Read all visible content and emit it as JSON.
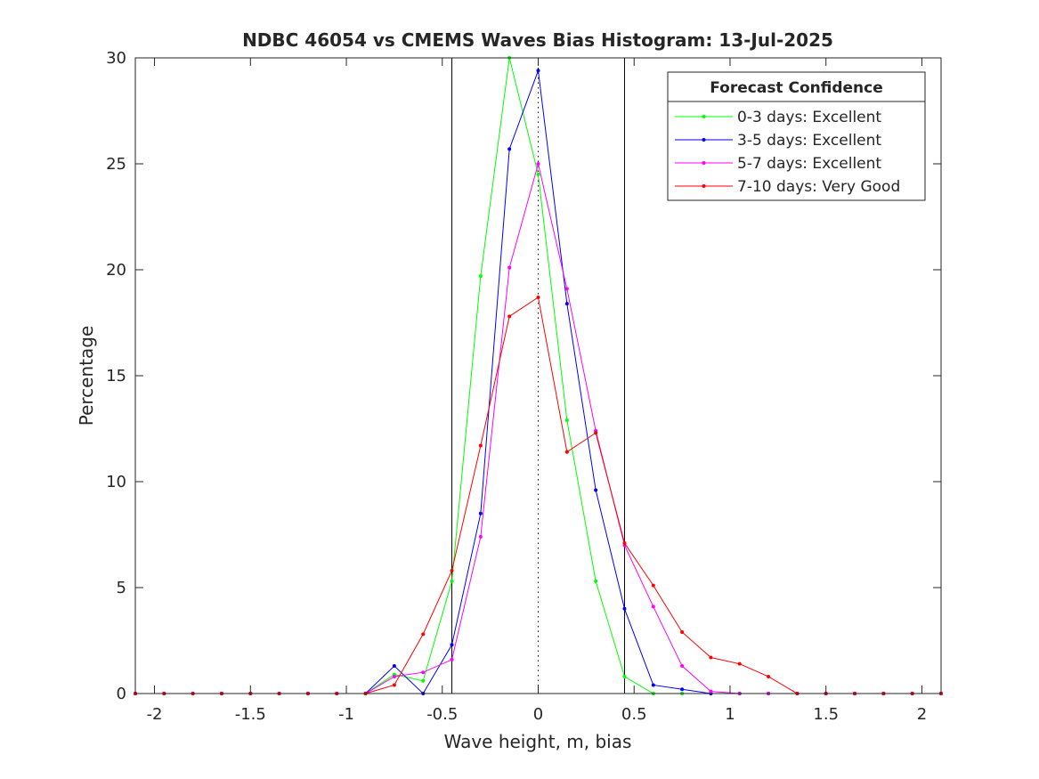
{
  "chart_data": {
    "type": "line",
    "title": "NDBC 46054 vs CMEMS Waves Bias Histogram: 13-Jul-2025",
    "xlabel": "Wave height, m, bias",
    "ylabel": "Percentage",
    "xlim": [
      -2.1,
      2.1
    ],
    "ylim": [
      0,
      30
    ],
    "xticks": [
      -2,
      -1.5,
      -1,
      -0.5,
      0,
      0.5,
      1,
      1.5,
      2
    ],
    "xtick_labels": [
      "-2",
      "-1.5",
      "-1",
      "-0.5",
      "0",
      "0.5",
      "1",
      "1.5",
      "2"
    ],
    "yticks": [
      0,
      5,
      10,
      15,
      20,
      25,
      30
    ],
    "ytick_labels": [
      "0",
      "5",
      "10",
      "15",
      "20",
      "25",
      "30"
    ],
    "grid": false,
    "reference_lines": {
      "solid_x": [
        -0.45,
        0.45
      ],
      "dotted_x": [
        0
      ]
    },
    "legend": {
      "title": "Forecast Confidence",
      "placement": "top-right"
    },
    "x": [
      -2.1,
      -1.95,
      -1.8,
      -1.65,
      -1.5,
      -1.35,
      -1.2,
      -1.05,
      -0.9,
      -0.75,
      -0.6,
      -0.45,
      -0.3,
      -0.15,
      0,
      0.15,
      0.3,
      0.45,
      0.6,
      0.75,
      0.9,
      1.05,
      1.2,
      1.35,
      1.5,
      1.65,
      1.8,
      1.95,
      2.1
    ],
    "series": [
      {
        "name": "0-3 days: Excellent",
        "color": "#00ff00",
        "values": [
          0,
          0,
          0,
          0,
          0,
          0,
          0,
          0,
          0,
          0.9,
          0.6,
          5.3,
          19.7,
          30.0,
          24.5,
          12.9,
          5.3,
          0.8,
          0,
          0,
          0,
          0,
          0,
          0,
          0,
          0,
          0,
          0,
          0
        ]
      },
      {
        "name": "3-5 days: Excellent",
        "color": "#0000ff",
        "values": [
          0,
          0,
          0,
          0,
          0,
          0,
          0,
          0,
          0,
          1.3,
          0,
          2.3,
          8.5,
          25.7,
          29.4,
          18.4,
          9.6,
          4.0,
          0.4,
          0.2,
          0,
          0,
          0,
          0,
          0,
          0,
          0,
          0,
          0
        ]
      },
      {
        "name": "5-7 days: Excellent",
        "color": "#ff00ff",
        "values": [
          0,
          0,
          0,
          0,
          0,
          0,
          0,
          0,
          0,
          0.8,
          1.0,
          1.6,
          7.4,
          20.1,
          25.0,
          19.1,
          12.4,
          7.0,
          4.1,
          1.3,
          0.1,
          0,
          0,
          0,
          0,
          0,
          0,
          0,
          0
        ]
      },
      {
        "name": "7-10 days: Very Good",
        "color": "#ff0000",
        "values": [
          0,
          0,
          0,
          0,
          0,
          0,
          0,
          0,
          0,
          0.4,
          2.8,
          5.8,
          11.7,
          17.8,
          18.7,
          11.4,
          12.3,
          7.1,
          5.1,
          2.9,
          1.7,
          1.4,
          0.8,
          0,
          0,
          0,
          0,
          0,
          0
        ]
      }
    ]
  }
}
